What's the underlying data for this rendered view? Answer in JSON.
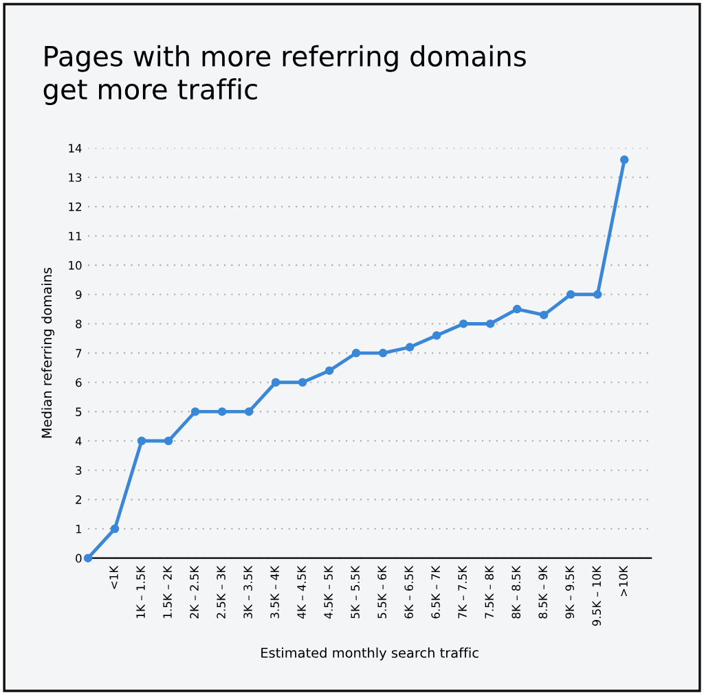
{
  "chart_data": {
    "type": "line",
    "title": "Pages with more referring domains\nget more traffic",
    "xlabel": "Estimated monthly search traffic",
    "ylabel": "Median referring domains",
    "categories": [
      null,
      "<1K",
      "1K – 1.5K",
      "1.5K – 2K",
      "2K – 2.5K",
      "2.5K – 3K",
      "3K – 3.5K",
      "3.5K – 4K",
      "4K – 4.5K",
      "4.5K – 5K",
      "5K – 5.5K",
      "5.5K – 6K",
      "6K – 6.5K",
      "6.5K – 7K",
      "7K – 7.5K",
      "7.5K – 8K",
      "8K – 8.5K",
      "8.5K – 9K",
      "9K – 9.5K",
      "9.5K – 10K",
      ">10K"
    ],
    "series": [
      {
        "color": "#3a87d8",
        "values": [
          0,
          1,
          4,
          4,
          5,
          5,
          5,
          6,
          6,
          6.4,
          7,
          7,
          7.2,
          7.6,
          8,
          8,
          8.5,
          8.3,
          9,
          9,
          13.6
        ]
      }
    ],
    "ylim": [
      0,
      14
    ],
    "yticks": [
      0,
      1,
      2,
      3,
      4,
      5,
      6,
      7,
      8,
      9,
      10,
      11,
      12,
      13,
      14
    ],
    "grid": "y",
    "marker": "circle",
    "line_style": "solid"
  }
}
